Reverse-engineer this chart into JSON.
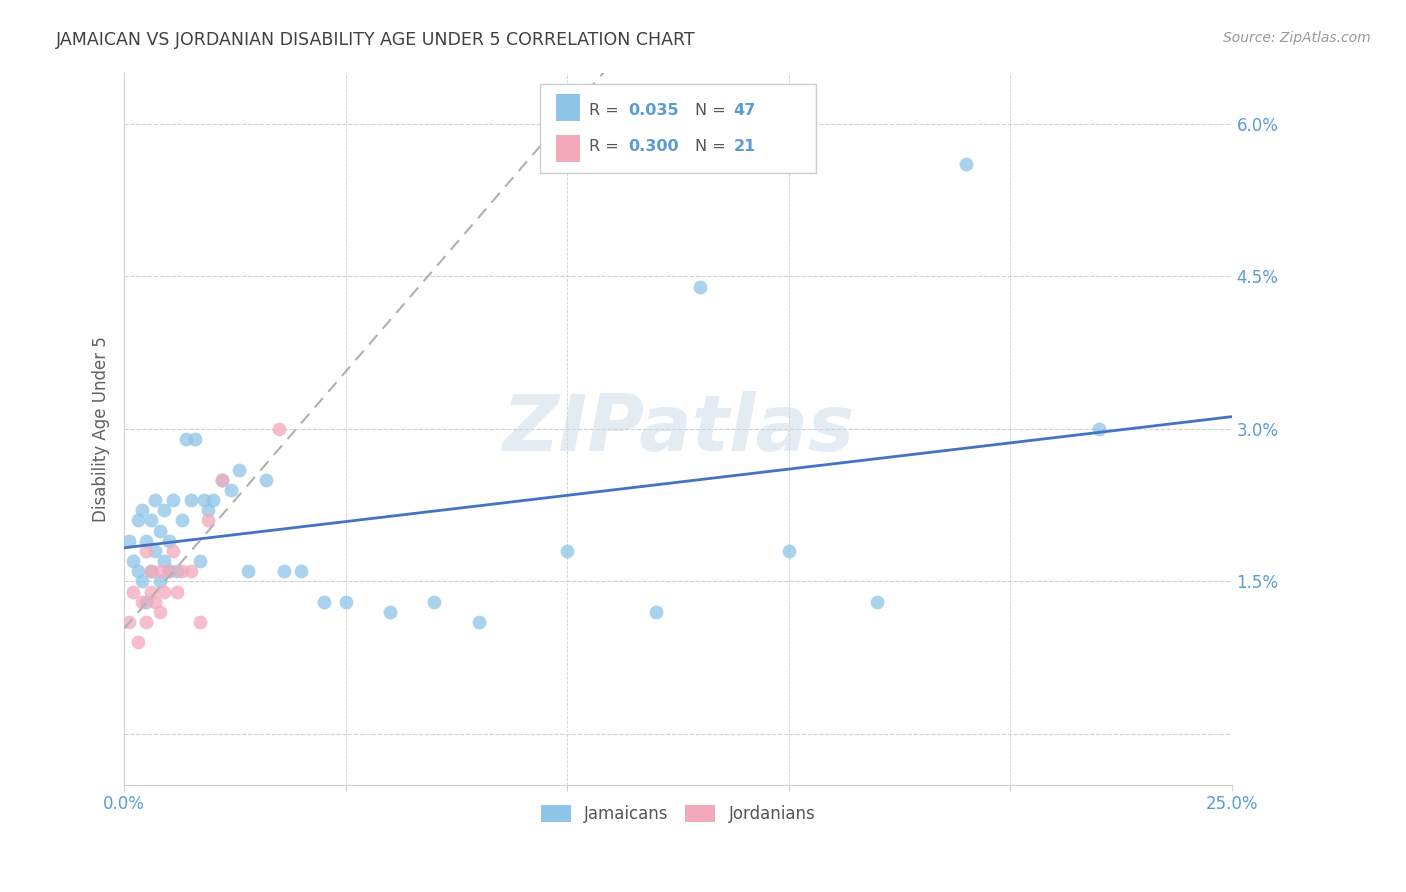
{
  "title": "JAMAICAN VS JORDANIAN DISABILITY AGE UNDER 5 CORRELATION CHART",
  "source": "Source: ZipAtlas.com",
  "ylabel": "Disability Age Under 5",
  "yticks": [
    0.0,
    0.015,
    0.03,
    0.045,
    0.06
  ],
  "ytick_labels": [
    "",
    "1.5%",
    "3.0%",
    "4.5%",
    "6.0%"
  ],
  "xlim": [
    0.0,
    0.25
  ],
  "ylim": [
    -0.005,
    0.065
  ],
  "legend_blue_R": "0.035",
  "legend_blue_N": "47",
  "legend_pink_R": "0.300",
  "legend_pink_N": "21",
  "jamaicans_x": [
    0.001,
    0.002,
    0.003,
    0.003,
    0.004,
    0.004,
    0.005,
    0.005,
    0.006,
    0.006,
    0.007,
    0.007,
    0.008,
    0.008,
    0.009,
    0.009,
    0.01,
    0.01,
    0.011,
    0.012,
    0.013,
    0.014,
    0.015,
    0.016,
    0.017,
    0.018,
    0.019,
    0.02,
    0.022,
    0.024,
    0.026,
    0.028,
    0.032,
    0.036,
    0.04,
    0.045,
    0.05,
    0.06,
    0.07,
    0.08,
    0.1,
    0.12,
    0.13,
    0.15,
    0.17,
    0.19,
    0.22
  ],
  "jamaicans_y": [
    0.019,
    0.017,
    0.016,
    0.021,
    0.015,
    0.022,
    0.013,
    0.019,
    0.016,
    0.021,
    0.018,
    0.023,
    0.015,
    0.02,
    0.017,
    0.022,
    0.016,
    0.019,
    0.023,
    0.016,
    0.021,
    0.029,
    0.023,
    0.029,
    0.017,
    0.023,
    0.022,
    0.023,
    0.025,
    0.024,
    0.026,
    0.016,
    0.025,
    0.016,
    0.016,
    0.013,
    0.013,
    0.012,
    0.013,
    0.011,
    0.018,
    0.012,
    0.044,
    0.018,
    0.013,
    0.056,
    0.03
  ],
  "jordanians_x": [
    0.001,
    0.002,
    0.003,
    0.004,
    0.005,
    0.005,
    0.006,
    0.006,
    0.007,
    0.008,
    0.008,
    0.009,
    0.01,
    0.011,
    0.012,
    0.013,
    0.015,
    0.017,
    0.019,
    0.022,
    0.035
  ],
  "jordanians_y": [
    0.011,
    0.014,
    0.009,
    0.013,
    0.018,
    0.011,
    0.014,
    0.016,
    0.013,
    0.016,
    0.012,
    0.014,
    0.016,
    0.018,
    0.014,
    0.016,
    0.016,
    0.011,
    0.021,
    0.025,
    0.03
  ],
  "blue_color": "#8ec4e8",
  "pink_color": "#f4a9bb",
  "blue_line_color": "#4472c4",
  "pink_line_color": "#c9677a",
  "dashed_line_color": "#b0b0b0",
  "background_color": "#ffffff",
  "grid_color": "#d0d0d0",
  "title_color": "#404040",
  "axis_label_color": "#5b9bd5",
  "ylabel_color": "#606060",
  "watermark": "ZIPatlas"
}
